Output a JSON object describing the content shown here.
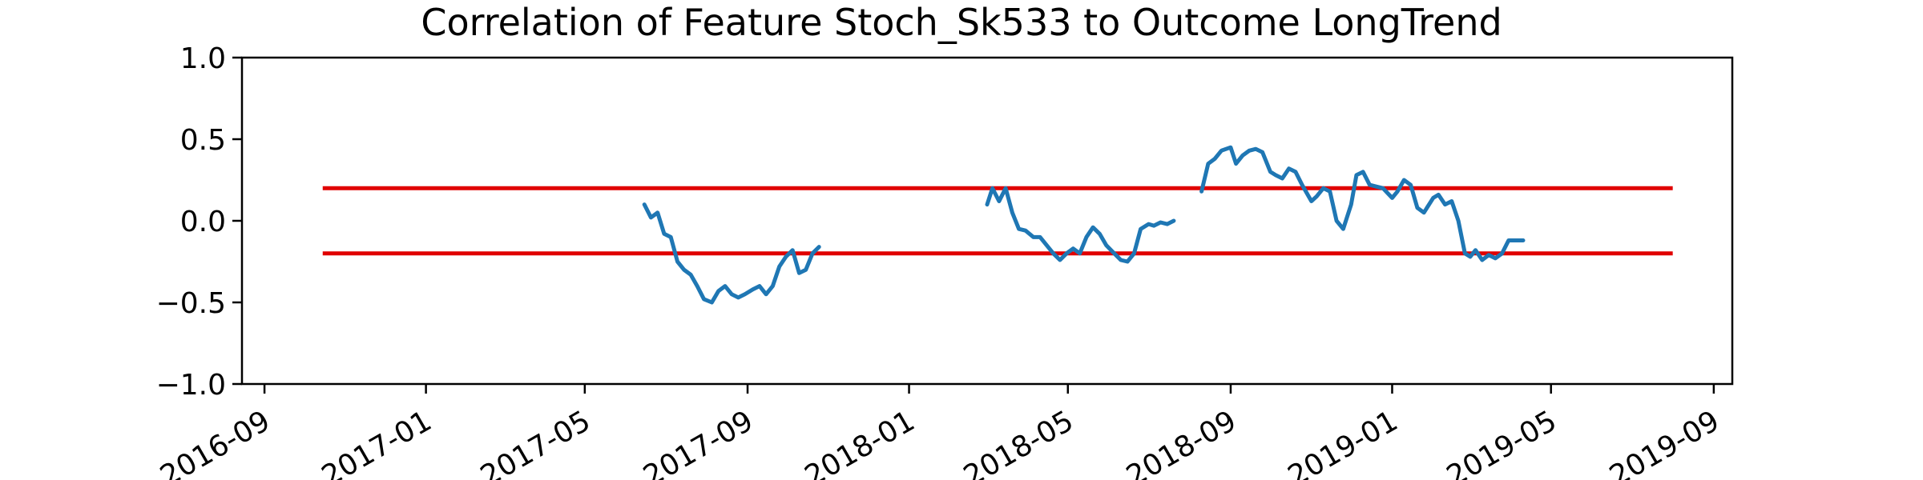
{
  "chart_data": {
    "type": "line",
    "title": "Correlation of Feature Stoch_Sk533 to Outcome LongTrend",
    "xlabel": "",
    "ylabel": "",
    "xlim": [
      "2016-08-15",
      "2019-09-15"
    ],
    "ylim": [
      -1.0,
      1.0
    ],
    "grid": false,
    "legend": "none",
    "x_tick_labels": [
      "2016-09",
      "2017-01",
      "2017-05",
      "2017-09",
      "2018-01",
      "2018-05",
      "2018-09",
      "2019-01",
      "2019-05",
      "2019-09"
    ],
    "y_tick_labels": [
      "1.0",
      "0.5",
      "0.0",
      "−0.5",
      "−1.0"
    ],
    "y_ticks": [
      1.0,
      0.5,
      0.0,
      -0.5,
      -1.0
    ],
    "threshold_lines": [
      {
        "y": 0.2,
        "x_start": "2016-10-15",
        "x_end": "2019-08-01",
        "color": "#e00000"
      },
      {
        "y": -0.2,
        "x_start": "2016-10-15",
        "x_end": "2019-08-01",
        "color": "#e00000"
      }
    ],
    "series_color": "#1f77b4",
    "series": [
      {
        "segments": [
          {
            "x": [
              "2017-06-15",
              "2017-06-20",
              "2017-06-25",
              "2017-06-30",
              "2017-07-05",
              "2017-07-10",
              "2017-07-15",
              "2017-07-20",
              "2017-07-25",
              "2017-07-30",
              "2017-08-05",
              "2017-08-10",
              "2017-08-15",
              "2017-08-20",
              "2017-08-25",
              "2017-08-30",
              "2017-09-05",
              "2017-09-10",
              "2017-09-15",
              "2017-09-20",
              "2017-09-25",
              "2017-09-30",
              "2017-10-05",
              "2017-10-10",
              "2017-10-15",
              "2017-10-20",
              "2017-10-25"
            ],
            "y": [
              0.1,
              0.02,
              0.05,
              -0.08,
              -0.1,
              -0.25,
              -0.3,
              -0.33,
              -0.4,
              -0.48,
              -0.5,
              -0.43,
              -0.4,
              -0.45,
              -0.47,
              -0.45,
              -0.42,
              -0.4,
              -0.45,
              -0.4,
              -0.28,
              -0.22,
              -0.18,
              -0.32,
              -0.3,
              -0.2,
              -0.16
            ]
          },
          {
            "x": [
              "2018-03-01",
              "2018-03-05",
              "2018-03-10",
              "2018-03-15",
              "2018-03-20",
              "2018-03-25",
              "2018-03-30",
              "2018-04-05",
              "2018-04-10",
              "2018-04-15",
              "2018-04-20",
              "2018-04-25",
              "2018-04-30",
              "2018-05-05",
              "2018-05-10",
              "2018-05-15",
              "2018-05-20",
              "2018-05-25",
              "2018-05-30",
              "2018-06-05",
              "2018-06-10",
              "2018-06-15",
              "2018-06-20",
              "2018-06-25",
              "2018-07-01",
              "2018-07-05",
              "2018-07-10",
              "2018-07-15",
              "2018-07-20"
            ],
            "y": [
              0.1,
              0.2,
              0.12,
              0.2,
              0.05,
              -0.05,
              -0.06,
              -0.1,
              -0.1,
              -0.15,
              -0.2,
              -0.24,
              -0.2,
              -0.17,
              -0.2,
              -0.1,
              -0.04,
              -0.08,
              -0.15,
              -0.2,
              -0.24,
              -0.25,
              -0.2,
              -0.05,
              -0.02,
              -0.03,
              -0.01,
              -0.02,
              0.0
            ]
          },
          {
            "x": [
              "2018-08-10",
              "2018-08-15",
              "2018-08-20",
              "2018-08-25",
              "2018-09-01",
              "2018-09-05",
              "2018-09-10",
              "2018-09-15",
              "2018-09-20",
              "2018-09-25",
              "2018-10-01",
              "2018-10-05",
              "2018-10-10",
              "2018-10-15",
              "2018-10-20",
              "2018-10-25",
              "2018-11-01",
              "2018-11-05",
              "2018-11-10",
              "2018-11-15",
              "2018-11-20",
              "2018-11-25",
              "2018-12-01",
              "2018-12-05",
              "2018-12-10",
              "2018-12-15",
              "2018-12-20",
              "2018-12-25",
              "2019-01-01",
              "2019-01-05",
              "2019-01-10",
              "2019-01-15",
              "2019-01-20",
              "2019-01-25",
              "2019-02-01",
              "2019-02-05",
              "2019-02-10",
              "2019-02-15",
              "2019-02-20",
              "2019-02-25",
              "2019-03-01",
              "2019-03-05",
              "2019-03-10",
              "2019-03-15",
              "2019-03-20",
              "2019-03-25",
              "2019-03-30",
              "2019-04-05",
              "2019-04-10"
            ],
            "y": [
              0.18,
              0.35,
              0.38,
              0.43,
              0.45,
              0.35,
              0.4,
              0.43,
              0.44,
              0.42,
              0.3,
              0.28,
              0.26,
              0.32,
              0.3,
              0.22,
              0.12,
              0.15,
              0.2,
              0.18,
              0.0,
              -0.05,
              0.1,
              0.28,
              0.3,
              0.22,
              0.21,
              0.2,
              0.14,
              0.18,
              0.25,
              0.22,
              0.08,
              0.05,
              0.14,
              0.16,
              0.1,
              0.12,
              0.0,
              -0.2,
              -0.22,
              -0.18,
              -0.24,
              -0.21,
              -0.23,
              -0.2,
              -0.12,
              -0.12,
              -0.12
            ]
          }
        ]
      }
    ]
  }
}
